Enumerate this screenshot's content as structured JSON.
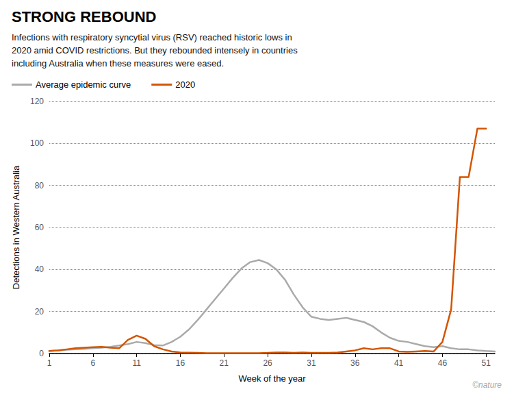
{
  "chart_data": {
    "type": "line",
    "title": "STRONG REBOUND",
    "subtitle": "Infections with respiratory syncytial virus (RSV) reached historic lows in\n2020 amid COVID restrictions. But they rebounded intensely in countries\nincluding Australia when these measures were eased.",
    "xlabel": "Week of the year",
    "ylabel": "Detections in Western Australia",
    "x": [
      1,
      2,
      3,
      4,
      5,
      6,
      7,
      8,
      9,
      10,
      11,
      12,
      13,
      14,
      15,
      16,
      17,
      18,
      19,
      20,
      21,
      22,
      23,
      24,
      25,
      26,
      27,
      28,
      29,
      30,
      31,
      32,
      33,
      34,
      35,
      36,
      37,
      38,
      39,
      40,
      41,
      42,
      43,
      44,
      45,
      46,
      47,
      48,
      49,
      50,
      51,
      52
    ],
    "series": [
      {
        "name": "Average epidemic curve",
        "color": "#aaaaaa",
        "values": [
          1.2,
          1.5,
          1.8,
          2.0,
          2.2,
          2.5,
          2.8,
          3.2,
          3.8,
          4.5,
          5.5,
          5.0,
          4.0,
          3.8,
          5.5,
          8.0,
          11.5,
          16.0,
          21.0,
          26.0,
          31.0,
          36.0,
          40.5,
          43.5,
          44.5,
          43.0,
          40.0,
          35.0,
          28.0,
          22.0,
          17.5,
          16.5,
          16.0,
          16.5,
          17.0,
          16.0,
          15.0,
          13.0,
          10.0,
          7.5,
          6.0,
          5.5,
          4.5,
          3.5,
          3.0,
          3.5,
          2.5,
          2.0,
          2.0,
          1.5,
          1.2,
          1.0
        ]
      },
      {
        "name": "2020",
        "color": "#d45500",
        "values": [
          1.2,
          1.5,
          2.0,
          2.5,
          2.8,
          3.0,
          3.2,
          2.8,
          2.5,
          6.5,
          8.5,
          7.0,
          3.5,
          2.0,
          1.0,
          0.5,
          0.4,
          0.3,
          0.2,
          0.2,
          0.2,
          0.2,
          0.2,
          0.2,
          0.2,
          0.3,
          0.5,
          0.5,
          0.3,
          0.5,
          0.3,
          0.3,
          0.3,
          0.5,
          1.0,
          1.5,
          2.5,
          2.0,
          2.5,
          2.5,
          1.0,
          0.8,
          1.0,
          1.2,
          1.0,
          5.5,
          21.0,
          84.0,
          84.0,
          107.0,
          107.0,
          null
        ]
      }
    ],
    "xlim": [
      1,
      52
    ],
    "xticks": [
      1,
      6,
      11,
      16,
      21,
      26,
      31,
      36,
      41,
      46,
      51
    ],
    "ylim": [
      0,
      120
    ],
    "yticks": [
      0,
      20,
      40,
      60,
      80,
      100,
      120
    ],
    "grid": true,
    "legend": "upper left",
    "annotations": [
      {
        "text": "©nature",
        "color": "#aaaaaa"
      }
    ]
  }
}
